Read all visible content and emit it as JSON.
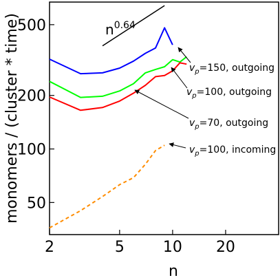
{
  "chart_data": {
    "type": "line",
    "xlabel": "n",
    "ylabel": "monomers / (cluster * time)",
    "x_scale": "log",
    "y_scale": "log",
    "xlim": [
      2,
      40
    ],
    "ylim": [
      33,
      670
    ],
    "x_ticks": [
      2,
      5,
      10,
      20
    ],
    "y_ticks": [
      50,
      100,
      200,
      500
    ],
    "grid": false,
    "series": [
      {
        "name": "v_p=150, outgoing",
        "annotation": {
          "base": "v",
          "sub": "p",
          "rest": "=150, outgoing"
        },
        "color": "#0000ff",
        "dash": "",
        "x": [
          2,
          3,
          4,
          5,
          6,
          7,
          8,
          9,
          10
        ],
        "y": [
          320,
          265,
          268,
          285,
          312,
          345,
          370,
          480,
          385
        ]
      },
      {
        "name": "v_p=100, outgoing",
        "annotation": {
          "base": "v",
          "sub": "p",
          "rest": "=100, outgoing"
        },
        "color": "#00ff00",
        "dash": "",
        "x": [
          2,
          3,
          4,
          5,
          6,
          7,
          8,
          9,
          10,
          11,
          12
        ],
        "y": [
          240,
          195,
          198,
          212,
          233,
          268,
          280,
          290,
          318,
          308,
          330
        ]
      },
      {
        "name": "v_p=70, outgoing",
        "annotation": {
          "base": "v",
          "sub": "p",
          "rest": "=70, outgoing"
        },
        "color": "#ff0000",
        "dash": "",
        "x": [
          2,
          3,
          4,
          5,
          6,
          7,
          8,
          9,
          10,
          11,
          12
        ],
        "y": [
          196,
          165,
          171,
          186,
          206,
          228,
          255,
          259,
          275,
          305,
          300
        ]
      },
      {
        "name": "v_p=100, incoming",
        "annotation": {
          "base": "v",
          "sub": "p",
          "rest": "=100, incoming"
        },
        "color": "#ff8c00",
        "dash": "5,4",
        "x": [
          2,
          3,
          4,
          5,
          6,
          7,
          8,
          9
        ],
        "y": [
          36,
          45,
          54,
          63,
          69,
          82,
          98,
          105
        ]
      }
    ],
    "power_law": {
      "label_base": "n",
      "label_exp": "0.64",
      "x": [
        4,
        9
      ],
      "y": [
        380,
        640
      ]
    }
  }
}
